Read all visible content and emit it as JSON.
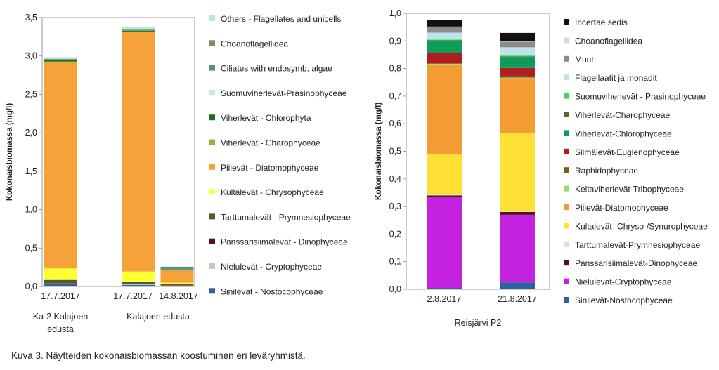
{
  "caption": "Kuva 3. Näytteiden kokonaisbiomassan koostuminen eri leväryhmistä.",
  "chart_data": [
    {
      "type": "bar",
      "stacked": true,
      "title": "",
      "xlabel": "",
      "ylabel": "Kokonaisbiomassa (mg/l)",
      "ylim": [
        0,
        3.5
      ],
      "y_ticks": [
        "0,0",
        "0,5",
        "1,0",
        "1,5",
        "2,0",
        "2,5",
        "3,0",
        "3,5"
      ],
      "grid": false,
      "legend_position": "right",
      "categories": [
        "17.7.2017",
        "17.7.2017",
        "14.8.2017"
      ],
      "groups": [
        {
          "lines": [
            "Ka-2 Kalajoen",
            "edusta"
          ]
        },
        {
          "lines": [
            "Kalajoen edusta"
          ]
        }
      ],
      "series": [
        {
          "name": "Sinilevät - Nostocophyceae",
          "color": "#2e5f9e",
          "values": [
            0.03,
            0.02,
            0.01
          ]
        },
        {
          "name": "Nielulevät - Cryptophyceae",
          "color": "#c9bfd6",
          "values": [
            0.01,
            0.01,
            0.005
          ]
        },
        {
          "name": "Panssarisiimalevät - Dinophyceae",
          "color": "#5b0f1b",
          "values": [
            0.005,
            0.005,
            0.003
          ]
        },
        {
          "name": "Tarttumalevät - Prymnesiophyceae",
          "color": "#4f5d2f",
          "values": [
            0.04,
            0.03,
            0.012
          ]
        },
        {
          "name": "Kultalevät - Chrysophyceae",
          "color": "#ffff33",
          "values": [
            0.15,
            0.13,
            0.02
          ]
        },
        {
          "name": "Piilevät - Diatomophyceae",
          "color": "#f6a23b",
          "values": [
            2.69,
            3.12,
            0.16
          ]
        },
        {
          "name": "Viherlevät - Charophyceae",
          "color": "#96b33a",
          "values": [
            0.003,
            0.003,
            0.002
          ]
        },
        {
          "name": "Viherlevät - Chlorophyta",
          "color": "#1f6f1f",
          "values": [
            0.015,
            0.015,
            0.005
          ]
        },
        {
          "name": "Suomuviherlevät-Prasinophyceae",
          "color": "#c8ecc8",
          "values": [
            0.005,
            0.005,
            0.003
          ]
        },
        {
          "name": "Ciliates with endosymb. algae",
          "color": "#5e8f7e",
          "values": [
            0.01,
            0.01,
            0.03
          ]
        },
        {
          "name": "Choanoflagellidea",
          "color": "#8d8460",
          "values": [
            0.002,
            0.002,
            0.002
          ]
        },
        {
          "name": "Others - Flagellates and unicells",
          "color": "#bfe3ea",
          "values": [
            0.025,
            0.03,
            0.008
          ]
        }
      ]
    },
    {
      "type": "bar",
      "stacked": true,
      "title": "",
      "xlabel": "Reisjärvi P2",
      "ylabel": "Kokonaisbiomassa (mg/l)",
      "ylim": [
        0,
        1.0
      ],
      "y_ticks": [
        "0,0",
        "0,1",
        "0,2",
        "0,3",
        "0,4",
        "0,5",
        "0,6",
        "0,7",
        "0,8",
        "0,9",
        "1,0"
      ],
      "grid": false,
      "legend_position": "right",
      "categories": [
        "2.8.2017",
        "21.8.2017"
      ],
      "series": [
        {
          "name": "Sinilevät-Nostocophyceae",
          "color": "#2e5f9e",
          "values": [
            0.005,
            0.025
          ]
        },
        {
          "name": "Nielulevät-Cryptophyceae",
          "color": "#c322e0",
          "values": [
            0.33,
            0.245
          ]
        },
        {
          "name": "Panssarisiimalevät-Dinophyceae",
          "color": "#5b0f1b",
          "values": [
            0.005,
            0.01
          ]
        },
        {
          "name": "Tarttumalevät-Prymnesiophyceae",
          "color": "#c8ecc8",
          "values": [
            0.002,
            0.002
          ]
        },
        {
          "name": "Kultalevät- Chryso-/Synurophyceae",
          "color": "#ffe135",
          "values": [
            0.148,
            0.283
          ]
        },
        {
          "name": "Piilevät-Diatomophyceae",
          "color": "#f39c34",
          "values": [
            0.325,
            0.2
          ]
        },
        {
          "name": "Keltaviherlevät-Tribophyceae",
          "color": "#8ee06a",
          "values": [
            0.002,
            0.002
          ]
        },
        {
          "name": "Raphidophyceae",
          "color": "#7a5a12",
          "values": [
            0.002,
            0.005
          ]
        },
        {
          "name": "Silmälevät-Euglenophyceae",
          "color": "#b01e24",
          "values": [
            0.036,
            0.03
          ]
        },
        {
          "name": "Viherlevät-Chlorophyceae",
          "color": "#0f9b58",
          "values": [
            0.045,
            0.04
          ]
        },
        {
          "name": "Viherlevät-Charophyceae",
          "color": "#556b2f",
          "values": [
            0.002,
            0.002
          ]
        },
        {
          "name": "Suomuviherlevät - Prasinophyceae",
          "color": "#3cd85b",
          "values": [
            0.003,
            0.003
          ]
        },
        {
          "name": "Flagellaatit ja monadit",
          "color": "#bfe3ea",
          "values": [
            0.025,
            0.03
          ]
        },
        {
          "name": "Muut",
          "color": "#8c8c8c",
          "values": [
            0.02,
            0.02
          ]
        },
        {
          "name": "Choanoflagellidea",
          "color": "#d8d8d8",
          "values": [
            0.002,
            0.002
          ]
        },
        {
          "name": "Incertae sedis",
          "color": "#111111",
          "values": [
            0.025,
            0.03
          ]
        }
      ]
    }
  ]
}
